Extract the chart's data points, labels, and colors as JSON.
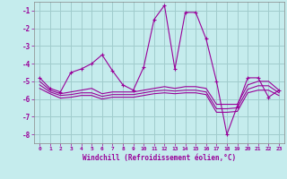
{
  "xlabel": "Windchill (Refroidissement éolien,°C)",
  "background_color": "#c5eced",
  "grid_color": "#a0cccc",
  "line_color": "#990099",
  "hours": [
    0,
    1,
    2,
    3,
    4,
    5,
    6,
    7,
    8,
    9,
    10,
    11,
    12,
    13,
    14,
    15,
    16,
    17,
    18,
    19,
    20,
    21,
    22,
    23
  ],
  "series1": [
    -4.8,
    -5.4,
    -5.6,
    -4.5,
    -4.3,
    -4.0,
    -3.5,
    -4.4,
    -5.2,
    -5.5,
    -4.2,
    -1.5,
    -0.7,
    -4.3,
    -1.1,
    -1.1,
    -2.6,
    -5.0,
    -8.0,
    -6.4,
    -4.8,
    -4.8,
    -5.9,
    -5.5
  ],
  "series2": [
    -5.0,
    -5.5,
    -5.7,
    -5.6,
    -5.5,
    -5.4,
    -5.7,
    -5.6,
    -5.6,
    -5.6,
    -5.5,
    -5.4,
    -5.3,
    -5.4,
    -5.3,
    -5.3,
    -5.4,
    -6.3,
    -6.3,
    -6.3,
    -5.2,
    -5.0,
    -5.0,
    -5.5
  ],
  "series3": [
    -5.2,
    -5.6,
    -5.8,
    -5.75,
    -5.65,
    -5.65,
    -5.85,
    -5.75,
    -5.75,
    -5.75,
    -5.65,
    -5.55,
    -5.5,
    -5.55,
    -5.5,
    -5.5,
    -5.6,
    -6.55,
    -6.55,
    -6.5,
    -5.45,
    -5.25,
    -5.25,
    -5.65
  ],
  "series4": [
    -5.4,
    -5.7,
    -5.95,
    -5.9,
    -5.8,
    -5.8,
    -6.0,
    -5.9,
    -5.9,
    -5.9,
    -5.8,
    -5.7,
    -5.65,
    -5.7,
    -5.65,
    -5.65,
    -5.75,
    -6.75,
    -6.75,
    -6.7,
    -5.65,
    -5.5,
    -5.5,
    -5.8
  ],
  "ylim": [
    -8.5,
    -0.5
  ],
  "yticks": [
    -8,
    -7,
    -6,
    -5,
    -4,
    -3,
    -2,
    -1
  ],
  "xticks": [
    0,
    1,
    2,
    3,
    4,
    5,
    6,
    7,
    8,
    9,
    10,
    11,
    12,
    13,
    14,
    15,
    16,
    17,
    18,
    19,
    20,
    21,
    22,
    23
  ]
}
